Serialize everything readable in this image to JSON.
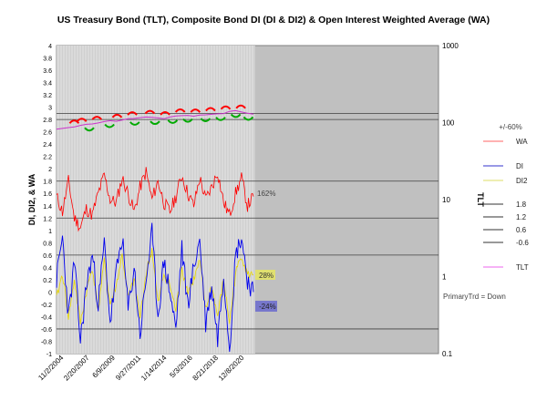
{
  "chart_data": {
    "type": "line",
    "title": "US Treasury Bond (TLT), Composite Bond DI (DI & DI2) & Open Interest Weighted Average (WA)",
    "ylabel_left": "DI, DI2, & WA",
    "ylabel_right": "TLT",
    "ylim_left": [
      -1,
      4
    ],
    "ylim_right_log": [
      0.1,
      1000
    ],
    "left_ticks": [
      "4",
      "3.8",
      "3.6",
      "3.4",
      "3.2",
      "3",
      "2.8",
      "2.6",
      "2.4",
      "2.2",
      "2",
      "1.8",
      "1.6",
      "1.4",
      "1.2",
      "1",
      "0.8",
      "0.6",
      "0.4",
      "0.2",
      "0",
      "-0.2",
      "-0.4",
      "-0.6",
      "-0.8",
      "-1"
    ],
    "right_ticks": [
      "1000",
      "100",
      "10",
      "1",
      "0.1"
    ],
    "x_tick_labels": [
      "11/2/2004",
      "2/20/2007",
      "6/9/2009",
      "9/27/2011",
      "1/14/2014",
      "5/3/2016",
      "8/21/2018",
      "12/8/2020"
    ],
    "reference_lines": [
      2.9,
      2.8,
      1.8,
      1.2,
      0.6,
      -0.6
    ],
    "annotations": {
      "pct_header": "+/-60%",
      "wa_pct": "162%",
      "di2_pct": "28%",
      "di_pct": "-24%",
      "primary_trend": "PrimaryTrd = Down"
    },
    "legend": [
      {
        "name": "WA",
        "color": "#ff6666"
      },
      {
        "name": "DI",
        "color": "#3333cc"
      },
      {
        "name": "DI2",
        "color": "#dddd66"
      },
      {
        "name": "1.8",
        "color": "#333333"
      },
      {
        "name": "1.2",
        "color": "#333333"
      },
      {
        "name": "0.6",
        "color": "#333333"
      },
      {
        "name": "-0.6",
        "color": "#333333"
      },
      {
        "name": "TLT",
        "color": "#ee66ee"
      }
    ],
    "series": [
      {
        "name": "TLT",
        "axis": "right",
        "color": "#cc33cc",
        "values": [
          82,
          84,
          86,
          88,
          92,
          95,
          96,
          99,
          103,
          106,
          104,
          108,
          112,
          113,
          116,
          118,
          117,
          115,
          112,
          118,
          122,
          123,
          124,
          121,
          125,
          126,
          128,
          130,
          131,
          140,
          143,
          137,
          132,
          129
        ]
      },
      {
        "name": "WA",
        "axis": "left",
        "color": "#ff0000",
        "values": [
          1.55,
          1.3,
          1.8,
          1.2,
          1.05,
          1.35,
          1.25,
          1.6,
          1.9,
          1.5,
          1.45,
          1.85,
          1.6,
          1.3,
          1.7,
          1.95,
          1.5,
          1.8,
          1.45,
          1.3,
          1.55,
          1.9,
          1.6,
          1.4,
          1.85,
          1.5,
          1.7,
          1.95,
          1.45,
          1.25,
          1.6,
          1.85,
          1.4,
          1.55
        ]
      },
      {
        "name": "DI",
        "axis": "left",
        "color": "#0000ee",
        "values": [
          0.2,
          0.9,
          -0.4,
          0.5,
          -0.8,
          0.1,
          0.6,
          -0.2,
          0.8,
          -0.5,
          0.3,
          0.9,
          -0.3,
          0.4,
          -0.7,
          0.2,
          0.95,
          -0.4,
          0.5,
          0.0,
          -0.6,
          0.7,
          -0.2,
          0.4,
          0.85,
          -0.5,
          0.1,
          -0.75,
          0.3,
          -0.9,
          0.6,
          0.9,
          0.2,
          0.0
        ]
      },
      {
        "name": "DI2",
        "axis": "left",
        "color": "#e6d600",
        "values": [
          -0.1,
          0.3,
          -0.4,
          0.2,
          -0.5,
          0.0,
          0.4,
          -0.3,
          0.5,
          -0.2,
          0.1,
          0.6,
          -0.1,
          0.2,
          -0.4,
          0.3,
          0.7,
          -0.2,
          0.3,
          0.1,
          -0.3,
          0.4,
          0.0,
          0.2,
          0.5,
          -0.3,
          0.1,
          -0.4,
          0.2,
          -0.5,
          0.3,
          0.6,
          0.28,
          0.28
        ]
      }
    ],
    "wa_peak_markers": [
      7,
      10,
      16,
      24,
      30,
      37,
      43,
      49,
      55,
      61,
      67,
      73
    ],
    "wa_trough_markers": [
      13,
      21,
      31,
      39,
      46,
      52,
      59,
      65,
      71,
      76
    ]
  }
}
